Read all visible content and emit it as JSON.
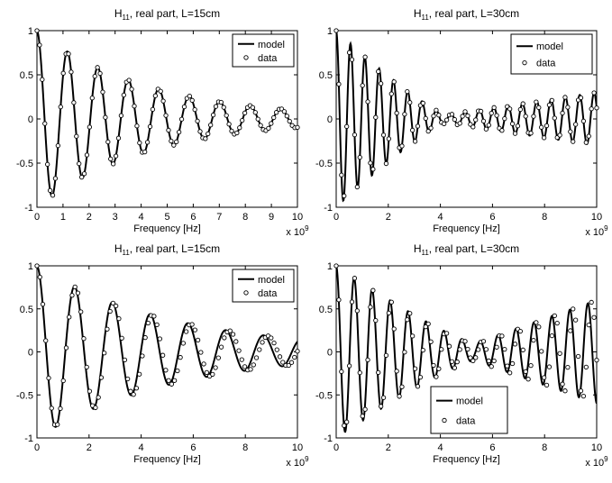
{
  "chart_data": [
    {
      "type": "line",
      "title_main": "H",
      "title_sub": "11",
      "title_rest": ", real part, L=15cm",
      "xlabel": "Frequency [Hz]",
      "x_exponent_base": "x 10",
      "x_exponent_power": "9",
      "xlim": [
        0,
        10
      ],
      "ylim": [
        -1,
        1
      ],
      "xticks": [
        "0",
        "1",
        "2",
        "3",
        "4",
        "5",
        "6",
        "7",
        "8",
        "9",
        "10"
      ],
      "yticks": [
        "1",
        "0.5",
        "0",
        "-0.5",
        "-1"
      ],
      "legend_position": "top-right",
      "legend": [
        "model",
        "data"
      ],
      "series": [
        {
          "name": "model",
          "style": "line",
          "amplitude_start": 1.0,
          "amplitude_end": 0.1,
          "period": 1.17
        },
        {
          "name": "data",
          "style": "marker-circle",
          "amplitude_start": 1.0,
          "amplitude_end": 0.1,
          "period": 1.17,
          "x_start": 0,
          "x_end": 10,
          "count": 100
        }
      ]
    },
    {
      "type": "line",
      "title_main": "H",
      "title_sub": "11",
      "title_rest": ", real part, L=30cm",
      "xlabel": "Frequency [Hz]",
      "x_exponent_base": "x 10",
      "x_exponent_power": "9",
      "xlim": [
        0,
        10
      ],
      "ylim": [
        -1,
        1
      ],
      "xticks": [
        "0",
        "2",
        "4",
        "6",
        "8",
        "10"
      ],
      "yticks": [
        "1",
        "0.5",
        "0",
        "-0.5",
        "-1"
      ],
      "legend_position": "top-right",
      "legend": [
        "model",
        "data"
      ],
      "series": [
        {
          "name": "model",
          "style": "line",
          "period": 0.55,
          "envelope": "beat",
          "amplitude_start": 1.0,
          "amplitude_min": 0.05,
          "amplitude_end": 0.3,
          "beat_min_x": 4.2
        },
        {
          "name": "data",
          "style": "marker-circle",
          "period": 0.55,
          "envelope": "beat",
          "amplitude_start": 1.0,
          "amplitude_min": 0.05,
          "amplitude_end": 0.3,
          "beat_min_x": 4.2,
          "x_start": 0,
          "x_end": 10,
          "count": 100
        }
      ]
    },
    {
      "type": "line",
      "title_main": "H",
      "title_sub": "11",
      "title_rest": ", real part, L=15cm",
      "xlabel": "Frequency [Hz]",
      "x_exponent_base": "x 10",
      "x_exponent_power": "9",
      "xlim": [
        0,
        10
      ],
      "ylim": [
        -1,
        1
      ],
      "xticks": [
        "0",
        "2",
        "4",
        "6",
        "8",
        "10"
      ],
      "yticks": [
        "1",
        "0.5",
        "0",
        "-0.5",
        "-1"
      ],
      "legend_position": "top-right",
      "legend": [
        "model",
        "data"
      ],
      "series": [
        {
          "name": "model",
          "style": "line",
          "amplitude_start": 1.0,
          "amplitude_end": 0.15,
          "period": 1.45
        },
        {
          "name": "data",
          "style": "marker-circle",
          "amplitude_start": 1.0,
          "amplitude_end": 0.15,
          "period": 1.45,
          "phase_shift_per_x": 0.02,
          "x_start": 0,
          "x_end": 10,
          "count": 90
        }
      ]
    },
    {
      "type": "line",
      "title_main": "H",
      "title_sub": "11",
      "title_rest": ", real part, L=30cm",
      "xlabel": "Frequency [Hz]",
      "x_exponent_base": "x 10",
      "x_exponent_power": "9",
      "xlim": [
        0,
        10
      ],
      "ylim": [
        -1,
        1
      ],
      "xticks": [
        "0",
        "2",
        "4",
        "6",
        "8",
        "10"
      ],
      "yticks": [
        "1",
        "0.5",
        "0",
        "-0.5",
        "-1"
      ],
      "legend_position": "bottom-right",
      "legend": [
        "model",
        "data"
      ],
      "series": [
        {
          "name": "model",
          "style": "line",
          "period": 0.69,
          "envelope": "beat",
          "amplitude_start": 1.0,
          "amplitude_min": 0.1,
          "amplitude_end": 0.6,
          "beat_min_x": 5.3
        },
        {
          "name": "data",
          "style": "marker-circle",
          "period": 0.69,
          "envelope": "beat",
          "amplitude_start": 1.0,
          "amplitude_min": 0.1,
          "amplitude_end": 0.6,
          "beat_min_x": 5.3,
          "phase_shift_per_x": 0.015,
          "x_start": 0,
          "x_end": 10,
          "count": 100
        }
      ]
    }
  ]
}
